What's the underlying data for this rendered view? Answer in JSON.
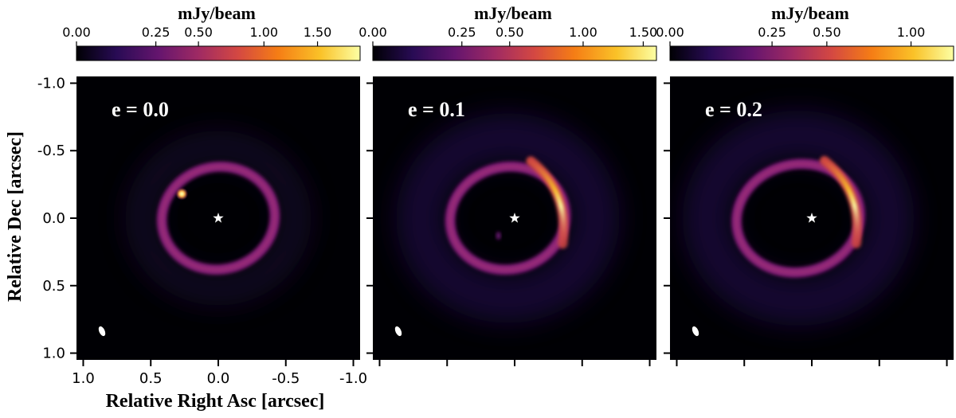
{
  "colorbar_label": "mJy/beam",
  "x_axis_label": "Relative Right Asc [arcsec]",
  "y_axis_label": "Relative Dec [arcsec]",
  "x_ticks": [
    "1.0",
    "0.5",
    "0.0",
    "-0.5",
    "-1.0"
  ],
  "y_ticks": [
    "-1.0",
    "-0.5",
    "0.0",
    "0.5",
    "1.0"
  ],
  "colormap": [
    "#000004",
    "#280b54",
    "#65156e",
    "#9f2a63",
    "#d44842",
    "#f57d15",
    "#fac228",
    "#fcffa4"
  ],
  "panels": [
    {
      "label": "e = 0.0",
      "colorbar_ticks": [
        "0.00",
        "0.25",
        "0.50",
        "1.00",
        "1.50"
      ],
      "colorbar_max": 1.95,
      "ring": {
        "a": 0.42,
        "b": 0.38,
        "center_offset": 0.0
      },
      "planet_blob": true,
      "arc": false
    },
    {
      "label": "e = 0.1",
      "colorbar_ticks": [
        "0.00",
        "0.25",
        "0.50",
        "1.00",
        "1.50"
      ],
      "colorbar_max": 1.62,
      "ring": {
        "a": 0.43,
        "b": 0.38,
        "center_offset": 0.05
      },
      "planet_blob": false,
      "arc": true
    },
    {
      "label": "e = 0.2",
      "colorbar_ticks": [
        "0.00",
        "0.25",
        "0.50",
        "1.00"
      ],
      "colorbar_max": 1.3,
      "ring": {
        "a": 0.46,
        "b": 0.4,
        "center_offset": 0.1
      },
      "planet_blob": false,
      "arc": true
    }
  ]
}
